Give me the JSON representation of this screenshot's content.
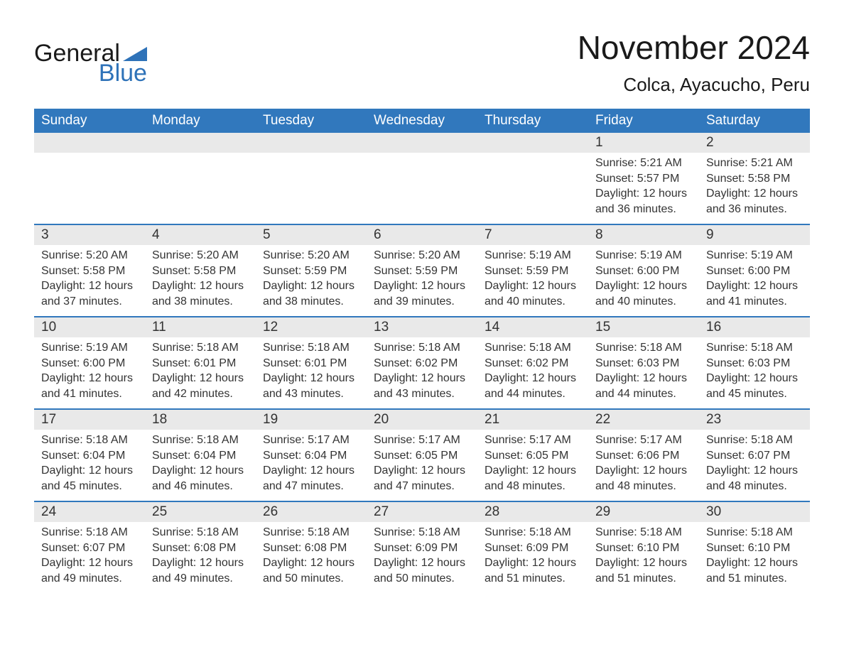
{
  "logo": {
    "word1": "General",
    "word2": "Blue",
    "brand_color": "#2e72b8"
  },
  "title": "November 2024",
  "location": "Colca, Ayacucho, Peru",
  "colors": {
    "header_bg": "#3178bd",
    "header_text": "#ffffff",
    "daynum_bg": "#e9e9e9",
    "text": "#333333",
    "rule": "#3178bd",
    "background": "#ffffff"
  },
  "day_headers": [
    "Sunday",
    "Monday",
    "Tuesday",
    "Wednesday",
    "Thursday",
    "Friday",
    "Saturday"
  ],
  "weeks": [
    [
      {
        "n": "",
        "empty": true
      },
      {
        "n": "",
        "empty": true
      },
      {
        "n": "",
        "empty": true
      },
      {
        "n": "",
        "empty": true
      },
      {
        "n": "",
        "empty": true
      },
      {
        "n": "1",
        "sunrise": "5:21 AM",
        "sunset": "5:57 PM",
        "daylight": "12 hours and 36 minutes."
      },
      {
        "n": "2",
        "sunrise": "5:21 AM",
        "sunset": "5:58 PM",
        "daylight": "12 hours and 36 minutes."
      }
    ],
    [
      {
        "n": "3",
        "sunrise": "5:20 AM",
        "sunset": "5:58 PM",
        "daylight": "12 hours and 37 minutes."
      },
      {
        "n": "4",
        "sunrise": "5:20 AM",
        "sunset": "5:58 PM",
        "daylight": "12 hours and 38 minutes."
      },
      {
        "n": "5",
        "sunrise": "5:20 AM",
        "sunset": "5:59 PM",
        "daylight": "12 hours and 38 minutes."
      },
      {
        "n": "6",
        "sunrise": "5:20 AM",
        "sunset": "5:59 PM",
        "daylight": "12 hours and 39 minutes."
      },
      {
        "n": "7",
        "sunrise": "5:19 AM",
        "sunset": "5:59 PM",
        "daylight": "12 hours and 40 minutes."
      },
      {
        "n": "8",
        "sunrise": "5:19 AM",
        "sunset": "6:00 PM",
        "daylight": "12 hours and 40 minutes."
      },
      {
        "n": "9",
        "sunrise": "5:19 AM",
        "sunset": "6:00 PM",
        "daylight": "12 hours and 41 minutes."
      }
    ],
    [
      {
        "n": "10",
        "sunrise": "5:19 AM",
        "sunset": "6:00 PM",
        "daylight": "12 hours and 41 minutes."
      },
      {
        "n": "11",
        "sunrise": "5:18 AM",
        "sunset": "6:01 PM",
        "daylight": "12 hours and 42 minutes."
      },
      {
        "n": "12",
        "sunrise": "5:18 AM",
        "sunset": "6:01 PM",
        "daylight": "12 hours and 43 minutes."
      },
      {
        "n": "13",
        "sunrise": "5:18 AM",
        "sunset": "6:02 PM",
        "daylight": "12 hours and 43 minutes."
      },
      {
        "n": "14",
        "sunrise": "5:18 AM",
        "sunset": "6:02 PM",
        "daylight": "12 hours and 44 minutes."
      },
      {
        "n": "15",
        "sunrise": "5:18 AM",
        "sunset": "6:03 PM",
        "daylight": "12 hours and 44 minutes."
      },
      {
        "n": "16",
        "sunrise": "5:18 AM",
        "sunset": "6:03 PM",
        "daylight": "12 hours and 45 minutes."
      }
    ],
    [
      {
        "n": "17",
        "sunrise": "5:18 AM",
        "sunset": "6:04 PM",
        "daylight": "12 hours and 45 minutes."
      },
      {
        "n": "18",
        "sunrise": "5:18 AM",
        "sunset": "6:04 PM",
        "daylight": "12 hours and 46 minutes."
      },
      {
        "n": "19",
        "sunrise": "5:17 AM",
        "sunset": "6:04 PM",
        "daylight": "12 hours and 47 minutes."
      },
      {
        "n": "20",
        "sunrise": "5:17 AM",
        "sunset": "6:05 PM",
        "daylight": "12 hours and 47 minutes."
      },
      {
        "n": "21",
        "sunrise": "5:17 AM",
        "sunset": "6:05 PM",
        "daylight": "12 hours and 48 minutes."
      },
      {
        "n": "22",
        "sunrise": "5:17 AM",
        "sunset": "6:06 PM",
        "daylight": "12 hours and 48 minutes."
      },
      {
        "n": "23",
        "sunrise": "5:18 AM",
        "sunset": "6:07 PM",
        "daylight": "12 hours and 48 minutes."
      }
    ],
    [
      {
        "n": "24",
        "sunrise": "5:18 AM",
        "sunset": "6:07 PM",
        "daylight": "12 hours and 49 minutes."
      },
      {
        "n": "25",
        "sunrise": "5:18 AM",
        "sunset": "6:08 PM",
        "daylight": "12 hours and 49 minutes."
      },
      {
        "n": "26",
        "sunrise": "5:18 AM",
        "sunset": "6:08 PM",
        "daylight": "12 hours and 50 minutes."
      },
      {
        "n": "27",
        "sunrise": "5:18 AM",
        "sunset": "6:09 PM",
        "daylight": "12 hours and 50 minutes."
      },
      {
        "n": "28",
        "sunrise": "5:18 AM",
        "sunset": "6:09 PM",
        "daylight": "12 hours and 51 minutes."
      },
      {
        "n": "29",
        "sunrise": "5:18 AM",
        "sunset": "6:10 PM",
        "daylight": "12 hours and 51 minutes."
      },
      {
        "n": "30",
        "sunrise": "5:18 AM",
        "sunset": "6:10 PM",
        "daylight": "12 hours and 51 minutes."
      }
    ]
  ],
  "labels": {
    "sunrise": "Sunrise: ",
    "sunset": "Sunset: ",
    "daylight": "Daylight: "
  }
}
